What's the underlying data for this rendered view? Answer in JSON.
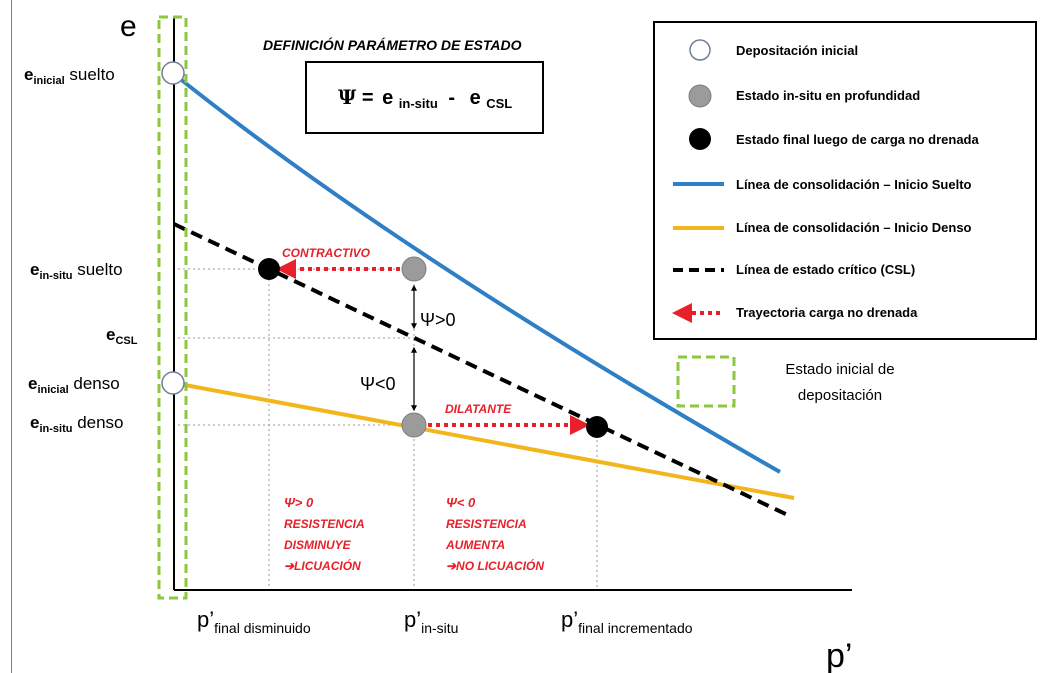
{
  "axes": {
    "y_axis_label": "e",
    "x_axis_label": "p’"
  },
  "title": "DEFINICIÓN PARÁMETRO DE ESTADO",
  "formula": {
    "psi": "Ψ",
    "equals": "=",
    "term1_base": "e",
    "term1_sub": "in-situ",
    "minus": "-",
    "term2_base": "e",
    "term2_sub": "CSL"
  },
  "y_labels": {
    "e_inicial_suelto": {
      "base": "e",
      "sub": "inicial",
      "suffix": " suelto"
    },
    "e_insitu_suelto": {
      "base": "e",
      "sub": "in-situ",
      "suffix": " suelto"
    },
    "e_csl": {
      "base": "e",
      "sub": "CSL",
      "suffix": ""
    },
    "e_inicial_denso": {
      "base": "e",
      "sub": "inicial",
      "suffix": " denso"
    },
    "e_insitu_denso": {
      "base": "e",
      "sub": "in-situ",
      "suffix": " denso"
    }
  },
  "x_labels": {
    "p_final_disminuido": {
      "base": "p’",
      "sub": "final disminuido"
    },
    "p_insitu": {
      "base": "p’",
      "sub": "in-situ"
    },
    "p_final_incrementado": {
      "base": "p’",
      "sub": "final incrementado"
    }
  },
  "annotations": {
    "contractivo": "CONTRACTIVO",
    "dilatante": "DILATANTE",
    "psi_positive": "Ψ>0",
    "psi_negative": "Ψ<0"
  },
  "zone_left": {
    "line1": "Ψ> 0",
    "line2": "RESISTENCIA",
    "line3": "DISMINUYE",
    "line4": "➔LICUACIÓN"
  },
  "zone_right": {
    "line1": "Ψ< 0",
    "line2": "RESISTENCIA",
    "line3": "AUMENTA",
    "line4": "➔NO LICUACIÓN"
  },
  "legend": [
    {
      "symbol": "open-circle",
      "label": "Depositación inicial"
    },
    {
      "symbol": "grey-circle",
      "label": "Estado in-situ en profundidad"
    },
    {
      "symbol": "black-circle",
      "label": "Estado final luego de carga no drenada"
    },
    {
      "symbol": "blue-line",
      "label": "Línea de consolidación – Inicio Suelto"
    },
    {
      "symbol": "yellow-line",
      "label": "Línea de consolidación – Inicio Denso"
    },
    {
      "symbol": "dashed-black-line",
      "label": "Línea de estado crítico (CSL)"
    },
    {
      "symbol": "red-dotted-arrow",
      "label": "Trayectoria carga no drenada"
    }
  ],
  "deposition_note": {
    "line1": "Estado inicial de",
    "line2": "depositación"
  },
  "colors": {
    "blue_line": "#2f7fc6",
    "yellow_line": "#f2b51c",
    "csl_line": "#000000",
    "red": "#e8202a",
    "green_dash": "#8dc63f",
    "grey_point": "#9b9b9b"
  }
}
